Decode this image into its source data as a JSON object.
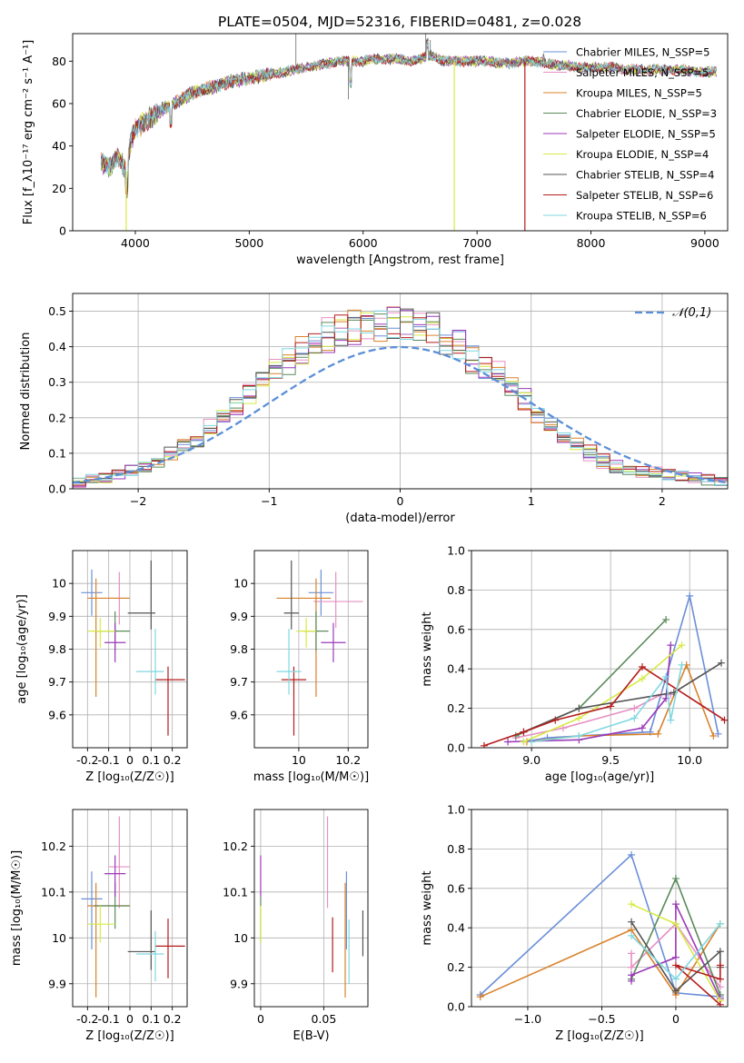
{
  "figure_title": "PLATE=0504, MJD=52316, FIBERID=0481, z=0.028",
  "colors": [
    "#6a8fd8",
    "#e590c3",
    "#d9822b",
    "#5a8a5a",
    "#9a39b8",
    "#d7ea43",
    "#555555",
    "#b51c1c",
    "#7fd7e0"
  ],
  "chart_data": [
    {
      "type": "line",
      "id": "spectrum",
      "xlabel": "wavelength [Angstrom, rest frame]",
      "ylabel": "Flux [f_λ10⁻¹⁷ erg cm⁻² s⁻¹ A⁻¹]",
      "xlim": [
        3450,
        9200
      ],
      "ylim": [
        0,
        93
      ],
      "xticks": [
        4000,
        5000,
        6000,
        7000,
        8000,
        9000
      ],
      "yticks": [
        0,
        20,
        40,
        60,
        80
      ],
      "grid": false,
      "legend_position": "right",
      "continuum": {
        "x": [
          3700,
          3780,
          3850,
          3920,
          3960,
          4000,
          4100,
          4200,
          4300,
          4400,
          4500,
          4600,
          4700,
          4800,
          4900,
          5000,
          5100,
          5200,
          5300,
          5400,
          5500,
          5600,
          5700,
          5800,
          5900,
          6000,
          6100,
          6200,
          6300,
          6400,
          6500,
          6600,
          6700,
          6800,
          6900,
          7000,
          7100,
          7200,
          7300,
          7400,
          7500,
          7600,
          7700,
          7800,
          7900,
          8000,
          8100,
          8200,
          8300,
          8400,
          8500,
          8600,
          8700,
          8800,
          8900,
          9000,
          9100
        ],
        "y": [
          32,
          30,
          35,
          28,
          42,
          48,
          52,
          56,
          59,
          62,
          65,
          67,
          68,
          70,
          71,
          72,
          73,
          74,
          75,
          76,
          77,
          78,
          79,
          80,
          80,
          80,
          81,
          81,
          81,
          80,
          81,
          83,
          80,
          80,
          80,
          80,
          80,
          79,
          79,
          80,
          80,
          79,
          78,
          78,
          77,
          77,
          77,
          77,
          76,
          76,
          76,
          76,
          76,
          76,
          75,
          75,
          75
        ]
      },
      "legend": [
        "Chabrier MILES, N_SSP=5",
        "Salpeter MILES, N_SSP=5",
        "Kroupa MILES, N_SSP=5",
        "Chabrier ELODIE, N_SSP=3",
        "Salpeter ELODIE, N_SSP=5",
        "Kroupa ELODIE, N_SSP=4",
        "Chabrier STELIB, N_SSP=4",
        "Salpeter STELIB, N_SSP=6",
        "Kroupa STELIB, N_SSP=6"
      ],
      "dropouts": [
        {
          "series": 5,
          "x": 3920
        },
        {
          "series": 5,
          "x": 6800
        },
        {
          "series": 7,
          "x": 7420
        }
      ]
    },
    {
      "type": "step",
      "id": "residuals",
      "xlabel": "(data-model)/error",
      "ylabel": "Normed distribution",
      "xlim": [
        -2.5,
        2.5
      ],
      "ylim": [
        0,
        0.55
      ],
      "xticks": [
        -2,
        -1,
        0,
        1,
        2
      ],
      "yticks": [
        0.0,
        0.1,
        0.2,
        0.3,
        0.4,
        0.5
      ],
      "grid": true,
      "legend": [
        "𝒩(0,1)"
      ],
      "legend_position": "top-right",
      "bin_width": 0.1,
      "hist_centers": [
        -2.45,
        -2.35,
        -2.25,
        -2.15,
        -2.05,
        -1.95,
        -1.85,
        -1.75,
        -1.65,
        -1.55,
        -1.45,
        -1.35,
        -1.25,
        -1.15,
        -1.05,
        -0.95,
        -0.85,
        -0.75,
        -0.65,
        -0.55,
        -0.45,
        -0.35,
        -0.25,
        -0.15,
        -0.05,
        0.05,
        0.15,
        0.25,
        0.35,
        0.45,
        0.55,
        0.65,
        0.75,
        0.85,
        0.95,
        1.05,
        1.15,
        1.25,
        1.35,
        1.45,
        1.55,
        1.65,
        1.75,
        1.85,
        1.95,
        2.05,
        2.15,
        2.25,
        2.35,
        2.45
      ],
      "hist_base": [
        0.02,
        0.025,
        0.03,
        0.04,
        0.05,
        0.06,
        0.08,
        0.1,
        0.12,
        0.14,
        0.17,
        0.2,
        0.23,
        0.27,
        0.3,
        0.33,
        0.36,
        0.39,
        0.41,
        0.43,
        0.44,
        0.45,
        0.46,
        0.47,
        0.46,
        0.46,
        0.45,
        0.44,
        0.42,
        0.4,
        0.37,
        0.35,
        0.32,
        0.28,
        0.25,
        0.21,
        0.18,
        0.15,
        0.12,
        0.1,
        0.08,
        0.065,
        0.055,
        0.05,
        0.045,
        0.04,
        0.035,
        0.03,
        0.025,
        0.02
      ]
    },
    {
      "type": "scatter",
      "id": "age-vs-Z",
      "xlabel": "Z [log₁₀(Z/Z☉)]",
      "ylabel": "age  [log₁₀(age/yr)]",
      "xlim": [
        -0.27,
        0.27
      ],
      "ylim": [
        9.5,
        10.1
      ],
      "xticks": [
        -0.2,
        -0.1,
        0.0,
        0.1,
        0.2
      ],
      "yticks": [
        9.6,
        9.7,
        9.8,
        9.9,
        10.0
      ],
      "grid": true,
      "points": [
        {
          "series": 0,
          "x": -0.18,
          "y": 9.972,
          "xerr": [
            0.05,
            0.05
          ],
          "yerr": [
            0.07,
            0.07
          ]
        },
        {
          "series": 1,
          "x": -0.05,
          "y": 9.955,
          "xerr": [
            0.05,
            0.05
          ],
          "yerr": [
            0.08,
            0.08
          ]
        },
        {
          "series": 2,
          "x": -0.16,
          "y": 9.955,
          "xerr": [
            0.04,
            0.16
          ],
          "yerr": [
            0.3,
            0.06
          ]
        },
        {
          "series": 3,
          "x": -0.07,
          "y": 9.855,
          "xerr": [
            0.1,
            0.07
          ],
          "yerr": [
            0.06,
            0.06
          ]
        },
        {
          "series": 4,
          "x": -0.07,
          "y": 9.82,
          "xerr": [
            0.05,
            0.05
          ],
          "yerr": [
            0.06,
            0.06
          ]
        },
        {
          "series": 5,
          "x": -0.14,
          "y": 9.855,
          "xerr": [
            0.06,
            0.07
          ],
          "yerr": [
            0.05,
            0.04
          ]
        },
        {
          "series": 6,
          "x": 0.1,
          "y": 9.91,
          "xerr": [
            0.11,
            0.02
          ],
          "yerr": [
            0.05,
            0.16
          ]
        },
        {
          "series": 7,
          "x": 0.18,
          "y": 9.707,
          "xerr": [
            0.06,
            0.08
          ],
          "yerr": [
            0.17,
            0.04
          ]
        },
        {
          "series": 8,
          "x": 0.12,
          "y": 9.732,
          "xerr": [
            0.09,
            0.04
          ],
          "yerr": [
            0.07,
            0.13
          ]
        }
      ]
    },
    {
      "type": "scatter",
      "id": "age-vs-mass",
      "xlabel": "mass [log₁₀(M/M☉)]",
      "ylabel": "",
      "xlim": [
        9.82,
        10.28
      ],
      "ylim": [
        9.5,
        10.1
      ],
      "xticks": [
        10.0,
        10.2
      ],
      "yticks": [
        9.6,
        9.7,
        9.8,
        9.9,
        10.0
      ],
      "grid": true,
      "points": [
        {
          "series": 0,
          "x": 10.09,
          "y": 9.972,
          "xerr": [
            0.05,
            0.05
          ],
          "yerr": [
            0.07,
            0.07
          ]
        },
        {
          "series": 1,
          "x": 10.15,
          "y": 9.945,
          "xerr": [
            0.09,
            0.11
          ],
          "yerr": [
            0.08,
            0.09
          ]
        },
        {
          "series": 2,
          "x": 10.07,
          "y": 9.955,
          "xerr": [
            0.16,
            0.06
          ],
          "yerr": [
            0.3,
            0.06
          ]
        },
        {
          "series": 3,
          "x": 10.07,
          "y": 9.855,
          "xerr": [
            0.05,
            0.05
          ],
          "yerr": [
            0.06,
            0.06
          ]
        },
        {
          "series": 4,
          "x": 10.14,
          "y": 9.82,
          "xerr": [
            0.05,
            0.05
          ],
          "yerr": [
            0.06,
            0.06
          ]
        },
        {
          "series": 5,
          "x": 10.03,
          "y": 9.855,
          "xerr": [
            0.04,
            0.04
          ],
          "yerr": [
            0.05,
            0.04
          ]
        },
        {
          "series": 6,
          "x": 9.97,
          "y": 9.91,
          "xerr": [
            0.03,
            0.03
          ],
          "yerr": [
            0.05,
            0.16
          ]
        },
        {
          "series": 7,
          "x": 9.98,
          "y": 9.707,
          "xerr": [
            0.05,
            0.05
          ],
          "yerr": [
            0.17,
            0.04
          ]
        },
        {
          "series": 8,
          "x": 9.96,
          "y": 9.732,
          "xerr": [
            0.05,
            0.05
          ],
          "yerr": [
            0.07,
            0.13
          ]
        }
      ]
    },
    {
      "type": "line",
      "id": "weight-vs-age",
      "xlabel": "age  [log₁₀(age/yr)]",
      "ylabel": "mass weight",
      "xlim": [
        8.62,
        10.24
      ],
      "ylim": [
        0.0,
        1.0
      ],
      "xticks": [
        9.0,
        9.5,
        10.0
      ],
      "yticks": [
        0.0,
        0.2,
        0.4,
        0.6,
        0.8,
        1.0
      ],
      "grid": true,
      "series": [
        {
          "series": 0,
          "x": [
            8.95,
            9.1,
            9.75,
            10.0,
            10.18
          ],
          "y": [
            0.03,
            0.05,
            0.08,
            0.77,
            0.07
          ]
        },
        {
          "series": 1,
          "x": [
            8.9,
            9.2,
            9.65,
            9.82,
            9.88
          ],
          "y": [
            0.05,
            0.1,
            0.2,
            0.27,
            0.27
          ]
        },
        {
          "series": 2,
          "x": [
            8.97,
            9.3,
            9.8,
            9.98,
            10.15
          ],
          "y": [
            0.03,
            0.06,
            0.07,
            0.42,
            0.06
          ]
        },
        {
          "series": 3,
          "x": [
            8.9,
            9.3,
            9.85
          ],
          "y": [
            0.06,
            0.2,
            0.65
          ]
        },
        {
          "series": 4,
          "x": [
            8.85,
            9.3,
            9.7,
            9.85,
            9.88
          ],
          "y": [
            0.03,
            0.04,
            0.1,
            0.25,
            0.52
          ]
        },
        {
          "series": 5,
          "x": [
            8.95,
            9.3,
            9.7,
            9.95
          ],
          "y": [
            0.03,
            0.15,
            0.35,
            0.52
          ]
        },
        {
          "series": 6,
          "x": [
            8.95,
            9.3,
            9.9,
            10.2
          ],
          "y": [
            0.08,
            0.2,
            0.28,
            0.43
          ]
        },
        {
          "series": 7,
          "x": [
            8.7,
            8.95,
            9.15,
            9.5,
            9.7,
            10.22
          ],
          "y": [
            0.01,
            0.08,
            0.14,
            0.21,
            0.41,
            0.14
          ]
        },
        {
          "series": 8,
          "x": [
            9.0,
            9.3,
            9.65,
            9.85,
            9.88,
            9.95
          ],
          "y": [
            0.03,
            0.06,
            0.15,
            0.36,
            0.14,
            0.42
          ]
        }
      ]
    },
    {
      "type": "scatter",
      "id": "mass-vs-Z",
      "xlabel": "Z [log₁₀(Z/Z☉)]",
      "ylabel": "mass [log₁₀(M/M☉)]",
      "xlim": [
        -0.27,
        0.27
      ],
      "ylim": [
        9.85,
        10.28
      ],
      "xticks": [
        -0.2,
        -0.1,
        0.0,
        0.1,
        0.2
      ],
      "yticks": [
        9.9,
        10.0,
        10.1,
        10.2
      ],
      "grid": true,
      "points": [
        {
          "series": 0,
          "x": -0.18,
          "y": 10.085,
          "xerr": [
            0.05,
            0.05
          ],
          "yerr": [
            0.11,
            0.06
          ]
        },
        {
          "series": 1,
          "x": -0.05,
          "y": 10.155,
          "xerr": [
            0.05,
            0.05
          ],
          "yerr": [
            0.09,
            0.11
          ]
        },
        {
          "series": 2,
          "x": -0.16,
          "y": 10.07,
          "xerr": [
            0.04,
            0.16
          ],
          "yerr": [
            0.2,
            0.05
          ]
        },
        {
          "series": 3,
          "x": -0.07,
          "y": 10.07,
          "xerr": [
            0.1,
            0.07
          ],
          "yerr": [
            0.05,
            0.05
          ]
        },
        {
          "series": 4,
          "x": -0.07,
          "y": 10.14,
          "xerr": [
            0.05,
            0.05
          ],
          "yerr": [
            0.05,
            0.04
          ]
        },
        {
          "series": 5,
          "x": -0.14,
          "y": 10.03,
          "xerr": [
            0.06,
            0.07
          ],
          "yerr": [
            0.04,
            0.04
          ]
        },
        {
          "series": 6,
          "x": 0.1,
          "y": 9.97,
          "xerr": [
            0.11,
            0.02
          ],
          "yerr": [
            0.04,
            0.09
          ]
        },
        {
          "series": 7,
          "x": 0.18,
          "y": 9.982,
          "xerr": [
            0.06,
            0.08
          ],
          "yerr": [
            0.07,
            0.06
          ]
        },
        {
          "series": 8,
          "x": 0.12,
          "y": 9.965,
          "xerr": [
            0.09,
            0.04
          ],
          "yerr": [
            0.06,
            0.05
          ]
        }
      ]
    },
    {
      "type": "scatter",
      "id": "mass-vs-ebv",
      "xlabel": "E(B-V)",
      "ylabel": "",
      "xlim": [
        -0.005,
        0.085
      ],
      "ylim": [
        9.85,
        10.28
      ],
      "xticks": [
        0.0,
        0.05
      ],
      "yticks": [
        9.9,
        10.0,
        10.1,
        10.2
      ],
      "grid": true,
      "points": [
        {
          "series": 0,
          "x": 0.068,
          "y": 10.085,
          "yerr": [
            0.11,
            0.06
          ]
        },
        {
          "series": 1,
          "x": 0.053,
          "y": 10.155,
          "yerr": [
            0.09,
            0.11
          ]
        },
        {
          "series": 2,
          "x": 0.067,
          "y": 10.07,
          "yerr": [
            0.2,
            0.05
          ]
        },
        {
          "series": 3,
          "x": 0.0,
          "y": 10.04,
          "yerr": [
            0.05,
            0.05
          ]
        },
        {
          "series": 4,
          "x": 0.0,
          "y": 10.14,
          "yerr": [
            0.05,
            0.04
          ]
        },
        {
          "series": 5,
          "x": 0.0,
          "y": 10.03,
          "yerr": [
            0.04,
            0.04
          ]
        },
        {
          "series": 6,
          "x": 0.081,
          "y": 10.0,
          "yerr": [
            0.04,
            0.06
          ]
        },
        {
          "series": 7,
          "x": 0.057,
          "y": 9.985,
          "yerr": [
            0.06,
            0.06
          ]
        },
        {
          "series": 8,
          "x": 0.07,
          "y": 9.98,
          "yerr": [
            0.08,
            0.06
          ]
        }
      ]
    },
    {
      "type": "line",
      "id": "weight-vs-Z",
      "xlabel": "Z [log₁₀(Z/Z☉)]",
      "ylabel": "mass weight",
      "xlim": [
        -1.38,
        0.35
      ],
      "ylim": [
        0.0,
        1.0
      ],
      "xticks": [
        -1.0,
        -0.5,
        0.0
      ],
      "yticks": [
        0.0,
        0.2,
        0.4,
        0.6,
        0.8,
        1.0
      ],
      "grid": true,
      "series": [
        {
          "series": 0,
          "x": [
            -1.32,
            -0.3,
            0.0,
            0.3
          ],
          "y": [
            0.06,
            0.77,
            0.07,
            0.05
          ]
        },
        {
          "series": 1,
          "x": [
            -0.3,
            -0.3,
            0.0,
            0.3
          ],
          "y": [
            0.27,
            0.2,
            0.42,
            0.1
          ]
        },
        {
          "series": 2,
          "x": [
            -1.32,
            -0.3,
            0.0,
            0.3
          ],
          "y": [
            0.05,
            0.39,
            0.06,
            0.42
          ]
        },
        {
          "series": 3,
          "x": [
            -0.3,
            0.0,
            0.3
          ],
          "y": [
            0.14,
            0.65,
            0.06
          ]
        },
        {
          "series": 4,
          "x": [
            -0.3,
            -0.3,
            0.0,
            0.0,
            0.3
          ],
          "y": [
            0.13,
            0.16,
            0.25,
            0.52,
            0.04
          ]
        },
        {
          "series": 5,
          "x": [
            -0.3,
            0.0,
            0.3
          ],
          "y": [
            0.52,
            0.42,
            0.03
          ]
        },
        {
          "series": 6,
          "x": [
            -0.3,
            0.0,
            0.3,
            0.3
          ],
          "y": [
            0.43,
            0.08,
            0.28,
            0.2
          ]
        },
        {
          "series": 7,
          "x": [
            0.3,
            0.0,
            0.3,
            0.3
          ],
          "y": [
            0.01,
            0.21,
            0.14,
            0.21
          ]
        },
        {
          "series": 8,
          "x": [
            -0.3,
            0.0,
            0.3
          ],
          "y": [
            0.36,
            0.14,
            0.42
          ]
        }
      ]
    }
  ]
}
